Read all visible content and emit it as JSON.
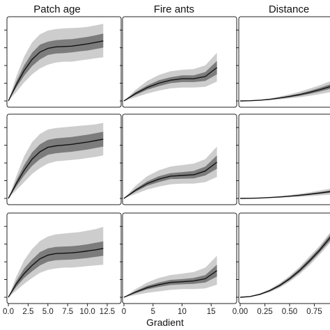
{
  "colors": {
    "outer_band": "#cdcdcd",
    "inner_band": "#7c7c7c",
    "line": "#111111",
    "frame": "#222222"
  },
  "chart_data": {
    "type": "line",
    "xlabel": "Gradient",
    "rows": 3,
    "columns": [
      {
        "title": "Patch age",
        "xlim": [
          0,
          12.5
        ],
        "xticks": [
          0,
          2.5,
          5,
          7.5,
          10,
          12.5
        ],
        "xtick_labels": [
          "0.0",
          "2.5",
          "5.0",
          "7.5",
          "10.0",
          "12.5"
        ],
        "x": [
          0,
          1,
          2,
          3,
          4,
          5,
          6,
          7,
          8,
          9,
          10,
          11,
          12
        ],
        "rows": [
          {
            "mean": [
              0,
              0.22,
              0.41,
              0.56,
              0.66,
              0.71,
              0.73,
              0.735,
              0.74,
              0.755,
              0.77,
              0.79,
              0.81
            ],
            "inner_lo": [
              0,
              0.18,
              0.34,
              0.47,
              0.56,
              0.62,
              0.64,
              0.645,
              0.655,
              0.67,
              0.68,
              0.7,
              0.72
            ],
            "inner_hi": [
              0,
              0.26,
              0.48,
              0.65,
              0.76,
              0.8,
              0.82,
              0.83,
              0.835,
              0.85,
              0.865,
              0.885,
              0.91
            ],
            "outer_lo": [
              0,
              0.12,
              0.25,
              0.36,
              0.44,
              0.49,
              0.52,
              0.53,
              0.53,
              0.545,
              0.56,
              0.575,
              0.59
            ],
            "outer_hi": [
              0,
              0.33,
              0.6,
              0.79,
              0.9,
              0.95,
              0.97,
              0.98,
              0.985,
              0.99,
              1.0,
              1.02,
              1.04
            ]
          },
          {
            "mean": [
              0,
              0.2,
              0.38,
              0.53,
              0.63,
              0.69,
              0.71,
              0.72,
              0.73,
              0.745,
              0.76,
              0.78,
              0.8
            ],
            "inner_lo": [
              0,
              0.16,
              0.31,
              0.44,
              0.53,
              0.59,
              0.61,
              0.62,
              0.63,
              0.645,
              0.66,
              0.68,
              0.7
            ],
            "inner_hi": [
              0,
              0.24,
              0.45,
              0.62,
              0.73,
              0.79,
              0.81,
              0.82,
              0.83,
              0.845,
              0.86,
              0.88,
              0.9
            ],
            "outer_lo": [
              0,
              0.11,
              0.22,
              0.33,
              0.41,
              0.47,
              0.5,
              0.51,
              0.52,
              0.53,
              0.545,
              0.56,
              0.58
            ],
            "outer_hi": [
              0,
              0.3,
              0.57,
              0.76,
              0.87,
              0.93,
              0.95,
              0.96,
              0.97,
              0.98,
              0.99,
              1.0,
              1.02
            ]
          },
          {
            "mean": [
              0,
              0.18,
              0.32,
              0.43,
              0.52,
              0.57,
              0.59,
              0.595,
              0.6,
              0.61,
              0.625,
              0.64,
              0.66
            ],
            "inner_lo": [
              0,
              0.14,
              0.26,
              0.35,
              0.43,
              0.48,
              0.5,
              0.505,
              0.51,
              0.52,
              0.53,
              0.545,
              0.56
            ],
            "inner_hi": [
              0,
              0.22,
              0.39,
              0.51,
              0.61,
              0.66,
              0.68,
              0.685,
              0.69,
              0.7,
              0.715,
              0.735,
              0.755
            ],
            "outer_lo": [
              0,
              0.09,
              0.18,
              0.26,
              0.33,
              0.37,
              0.39,
              0.4,
              0.4,
              0.41,
              0.42,
              0.43,
              0.44
            ],
            "outer_hi": [
              0,
              0.28,
              0.5,
              0.65,
              0.76,
              0.82,
              0.85,
              0.86,
              0.87,
              0.88,
              0.9,
              0.92,
              0.95
            ]
          }
        ]
      },
      {
        "title": "Fire ants",
        "xlim": [
          0,
          17
        ],
        "xticks": [
          0,
          5,
          10,
          15
        ],
        "xtick_labels": [
          "0",
          "5",
          "10",
          "15"
        ],
        "x": [
          0,
          2,
          4,
          6,
          8,
          10,
          12,
          14,
          16
        ],
        "rows": [
          {
            "mean": [
              0,
              0.1,
              0.18,
              0.24,
              0.28,
              0.3,
              0.3,
              0.33,
              0.45
            ],
            "inner_lo": [
              0,
              0.08,
              0.15,
              0.2,
              0.24,
              0.255,
              0.255,
              0.27,
              0.36
            ],
            "inner_hi": [
              0,
              0.12,
              0.21,
              0.28,
              0.32,
              0.345,
              0.345,
              0.39,
              0.54
            ],
            "outer_lo": [
              0,
              0.05,
              0.1,
              0.14,
              0.17,
              0.18,
              0.18,
              0.19,
              0.26
            ],
            "outer_hi": [
              0,
              0.15,
              0.27,
              0.35,
              0.4,
              0.42,
              0.43,
              0.48,
              0.65
            ]
          },
          {
            "mean": [
              0,
              0.11,
              0.2,
              0.26,
              0.3,
              0.31,
              0.32,
              0.37,
              0.49
            ],
            "inner_lo": [
              0,
              0.09,
              0.17,
              0.22,
              0.26,
              0.265,
              0.27,
              0.31,
              0.4
            ],
            "inner_hi": [
              0,
              0.13,
              0.23,
              0.3,
              0.34,
              0.355,
              0.37,
              0.43,
              0.58
            ],
            "outer_lo": [
              0,
              0.06,
              0.12,
              0.16,
              0.19,
              0.2,
              0.2,
              0.22,
              0.29
            ],
            "outer_hi": [
              0,
              0.17,
              0.3,
              0.38,
              0.43,
              0.45,
              0.47,
              0.53,
              0.7
            ]
          },
          {
            "mean": [
              0,
              0.07,
              0.13,
              0.17,
              0.2,
              0.21,
              0.22,
              0.25,
              0.36
            ],
            "inner_lo": [
              0,
              0.055,
              0.105,
              0.14,
              0.165,
              0.175,
              0.18,
              0.2,
              0.28
            ],
            "inner_hi": [
              0,
              0.085,
              0.155,
              0.2,
              0.235,
              0.245,
              0.26,
              0.3,
              0.44
            ],
            "outer_lo": [
              0,
              0.03,
              0.06,
              0.08,
              0.1,
              0.11,
              0.11,
              0.12,
              0.17
            ],
            "outer_hi": [
              0,
              0.11,
              0.2,
              0.26,
              0.3,
              0.32,
              0.34,
              0.4,
              0.56
            ]
          }
        ]
      },
      {
        "title": "Distance",
        "xlim": [
          0,
          1
        ],
        "xticks": [
          0,
          0.25,
          0.5,
          0.75
        ],
        "xtick_labels": [
          "0.00",
          "0.25",
          "0.50",
          "0.75"
        ],
        "x": [
          0,
          0.1,
          0.2,
          0.3,
          0.4,
          0.5,
          0.6,
          0.7,
          0.8,
          0.9,
          1.0
        ],
        "rows": [
          {
            "mean": [
              0,
              0.003,
              0.01,
              0.022,
              0.04,
              0.06,
              0.085,
              0.115,
              0.15,
              0.19,
              0.23
            ],
            "inner_lo": [
              0,
              0.002,
              0.008,
              0.018,
              0.032,
              0.05,
              0.07,
              0.095,
              0.125,
              0.16,
              0.19
            ],
            "inner_hi": [
              0,
              0.004,
              0.012,
              0.026,
              0.048,
              0.072,
              0.1,
              0.135,
              0.175,
              0.22,
              0.27
            ],
            "outer_lo": [
              0,
              0.001,
              0.005,
              0.012,
              0.022,
              0.035,
              0.05,
              0.07,
              0.09,
              0.115,
              0.14
            ],
            "outer_hi": [
              0,
              0.006,
              0.016,
              0.034,
              0.06,
              0.09,
              0.125,
              0.165,
              0.21,
              0.26,
              0.32
            ]
          },
          {
            "mean": [
              0,
              0.002,
              0.006,
              0.012,
              0.02,
              0.03,
              0.042,
              0.056,
              0.072,
              0.09,
              0.11
            ],
            "inner_lo": [
              0,
              0.0015,
              0.005,
              0.01,
              0.016,
              0.025,
              0.035,
              0.047,
              0.06,
              0.075,
              0.092
            ],
            "inner_hi": [
              0,
              0.0025,
              0.007,
              0.014,
              0.024,
              0.035,
              0.05,
              0.066,
              0.085,
              0.106,
              0.13
            ],
            "outer_lo": [
              0,
              0.001,
              0.003,
              0.006,
              0.01,
              0.016,
              0.022,
              0.03,
              0.04,
              0.05,
              0.062
            ],
            "outer_hi": [
              0,
              0.004,
              0.01,
              0.019,
              0.031,
              0.045,
              0.062,
              0.082,
              0.105,
              0.13,
              0.16
            ]
          },
          {
            "mean": [
              0,
              0.01,
              0.04,
              0.09,
              0.16,
              0.25,
              0.36,
              0.49,
              0.63,
              0.79,
              0.95
            ],
            "inner_lo": [
              0,
              0.008,
              0.034,
              0.08,
              0.145,
              0.23,
              0.335,
              0.46,
              0.6,
              0.75,
              0.91
            ],
            "inner_hi": [
              0,
              0.012,
              0.046,
              0.1,
              0.175,
              0.27,
              0.385,
              0.52,
              0.66,
              0.83,
              0.99
            ],
            "outer_lo": [
              0,
              0.005,
              0.028,
              0.07,
              0.13,
              0.21,
              0.31,
              0.43,
              0.57,
              0.72,
              0.87
            ],
            "outer_hi": [
              0,
              0.015,
              0.052,
              0.11,
              0.19,
              0.29,
              0.41,
              0.55,
              0.69,
              0.86,
              1.03
            ]
          }
        ]
      }
    ]
  }
}
